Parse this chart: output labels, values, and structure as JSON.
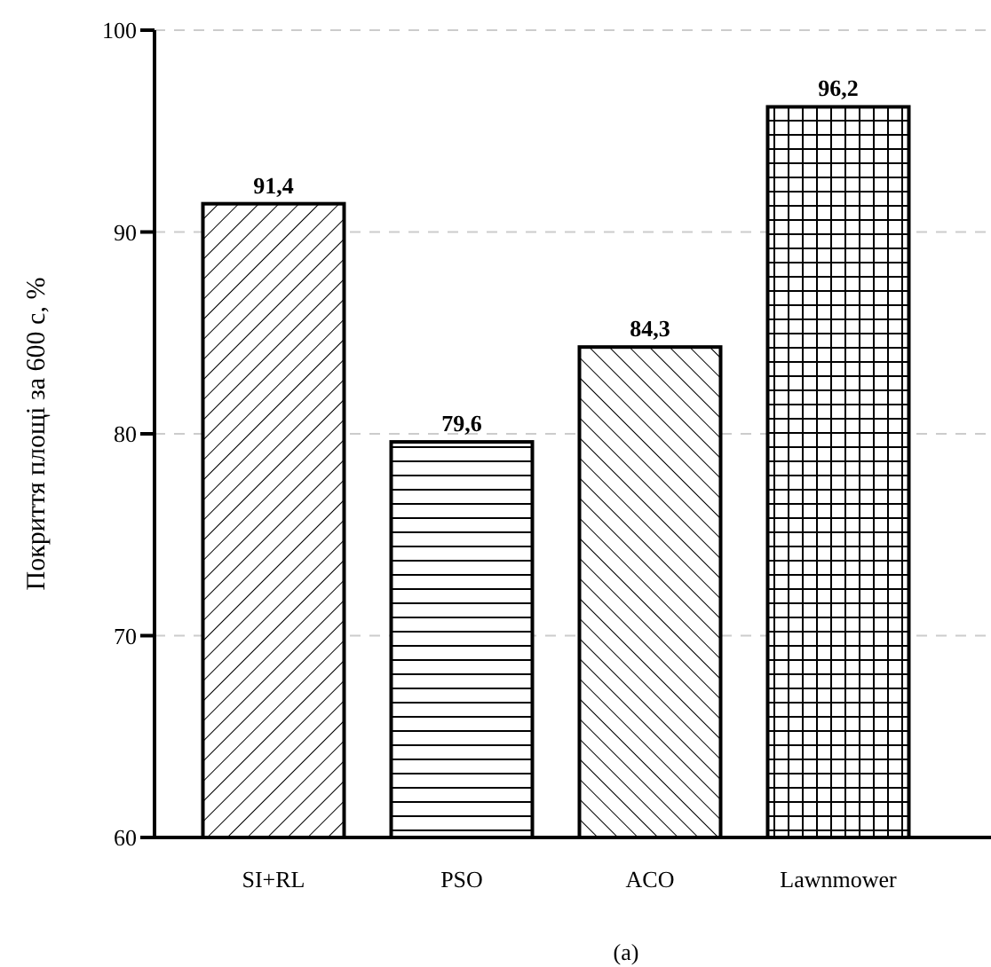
{
  "chart_data": {
    "type": "bar",
    "ylabel": "Покриття площі за 600 с, %",
    "categories": [
      "SI+RL",
      "PSO",
      "ACO",
      "Lawnmower"
    ],
    "values": [
      91.4,
      79.6,
      84.3,
      96.2
    ],
    "value_labels": [
      "91,4",
      "79,6",
      "84,3",
      "96,2"
    ],
    "color": "#000000",
    "ylim": [
      60,
      100
    ],
    "yticks": [
      60,
      70,
      80,
      90,
      100
    ],
    "grid": "y",
    "annotations": [
      "(a)"
    ]
  }
}
